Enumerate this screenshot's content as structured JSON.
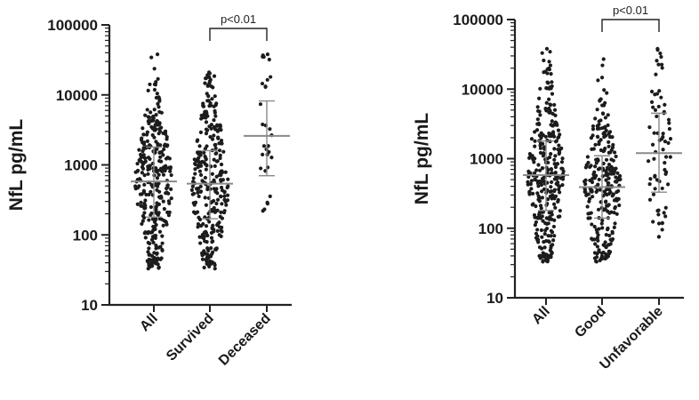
{
  "chart_data": [
    {
      "type": "scatter",
      "scale": "log",
      "ylabel": "NfL  pg/mL",
      "ylim": [
        10,
        100000
      ],
      "yticks": [
        10,
        100,
        1000,
        10000,
        100000
      ],
      "ytick_labels": [
        "10",
        "100",
        "1000",
        "10000",
        "100000"
      ],
      "categories": [
        "All",
        "Survived",
        "Deceased"
      ],
      "groups": [
        {
          "name": "All",
          "n": 320,
          "median": 580,
          "q1": 180,
          "q3": 1800,
          "min": 33,
          "max": 38000
        },
        {
          "name": "Survived",
          "n": 290,
          "median": 540,
          "q1": 170,
          "q3": 1600,
          "min": 33,
          "max": 21000
        },
        {
          "name": "Deceased",
          "n": 30,
          "median": 2600,
          "q1": 700,
          "q3": 8200,
          "min": 220,
          "max": 38000
        }
      ],
      "annotation": {
        "text": "p<0.01",
        "between": [
          "Survived",
          "Deceased"
        ]
      }
    },
    {
      "type": "scatter",
      "scale": "log",
      "ylabel": "NfL  pg/mL",
      "ylim": [
        10,
        100000
      ],
      "yticks": [
        10,
        100,
        1000,
        10000,
        100000
      ],
      "ytick_labels": [
        "10",
        "100",
        "1000",
        "10000",
        "100000"
      ],
      "categories": [
        "All",
        "Good",
        "Unfavorable"
      ],
      "groups": [
        {
          "name": "All",
          "n": 320,
          "median": 580,
          "q1": 180,
          "q3": 1800,
          "min": 33,
          "max": 38000
        },
        {
          "name": "Good",
          "n": 250,
          "median": 390,
          "q1": 140,
          "q3": 1100,
          "min": 33,
          "max": 27000
        },
        {
          "name": "Unfavorable",
          "n": 70,
          "median": 1200,
          "q1": 330,
          "q3": 4500,
          "min": 75,
          "max": 38000
        }
      ],
      "annotation": {
        "text": "p<0.01",
        "between": [
          "Good",
          "Unfavorable"
        ]
      }
    }
  ]
}
